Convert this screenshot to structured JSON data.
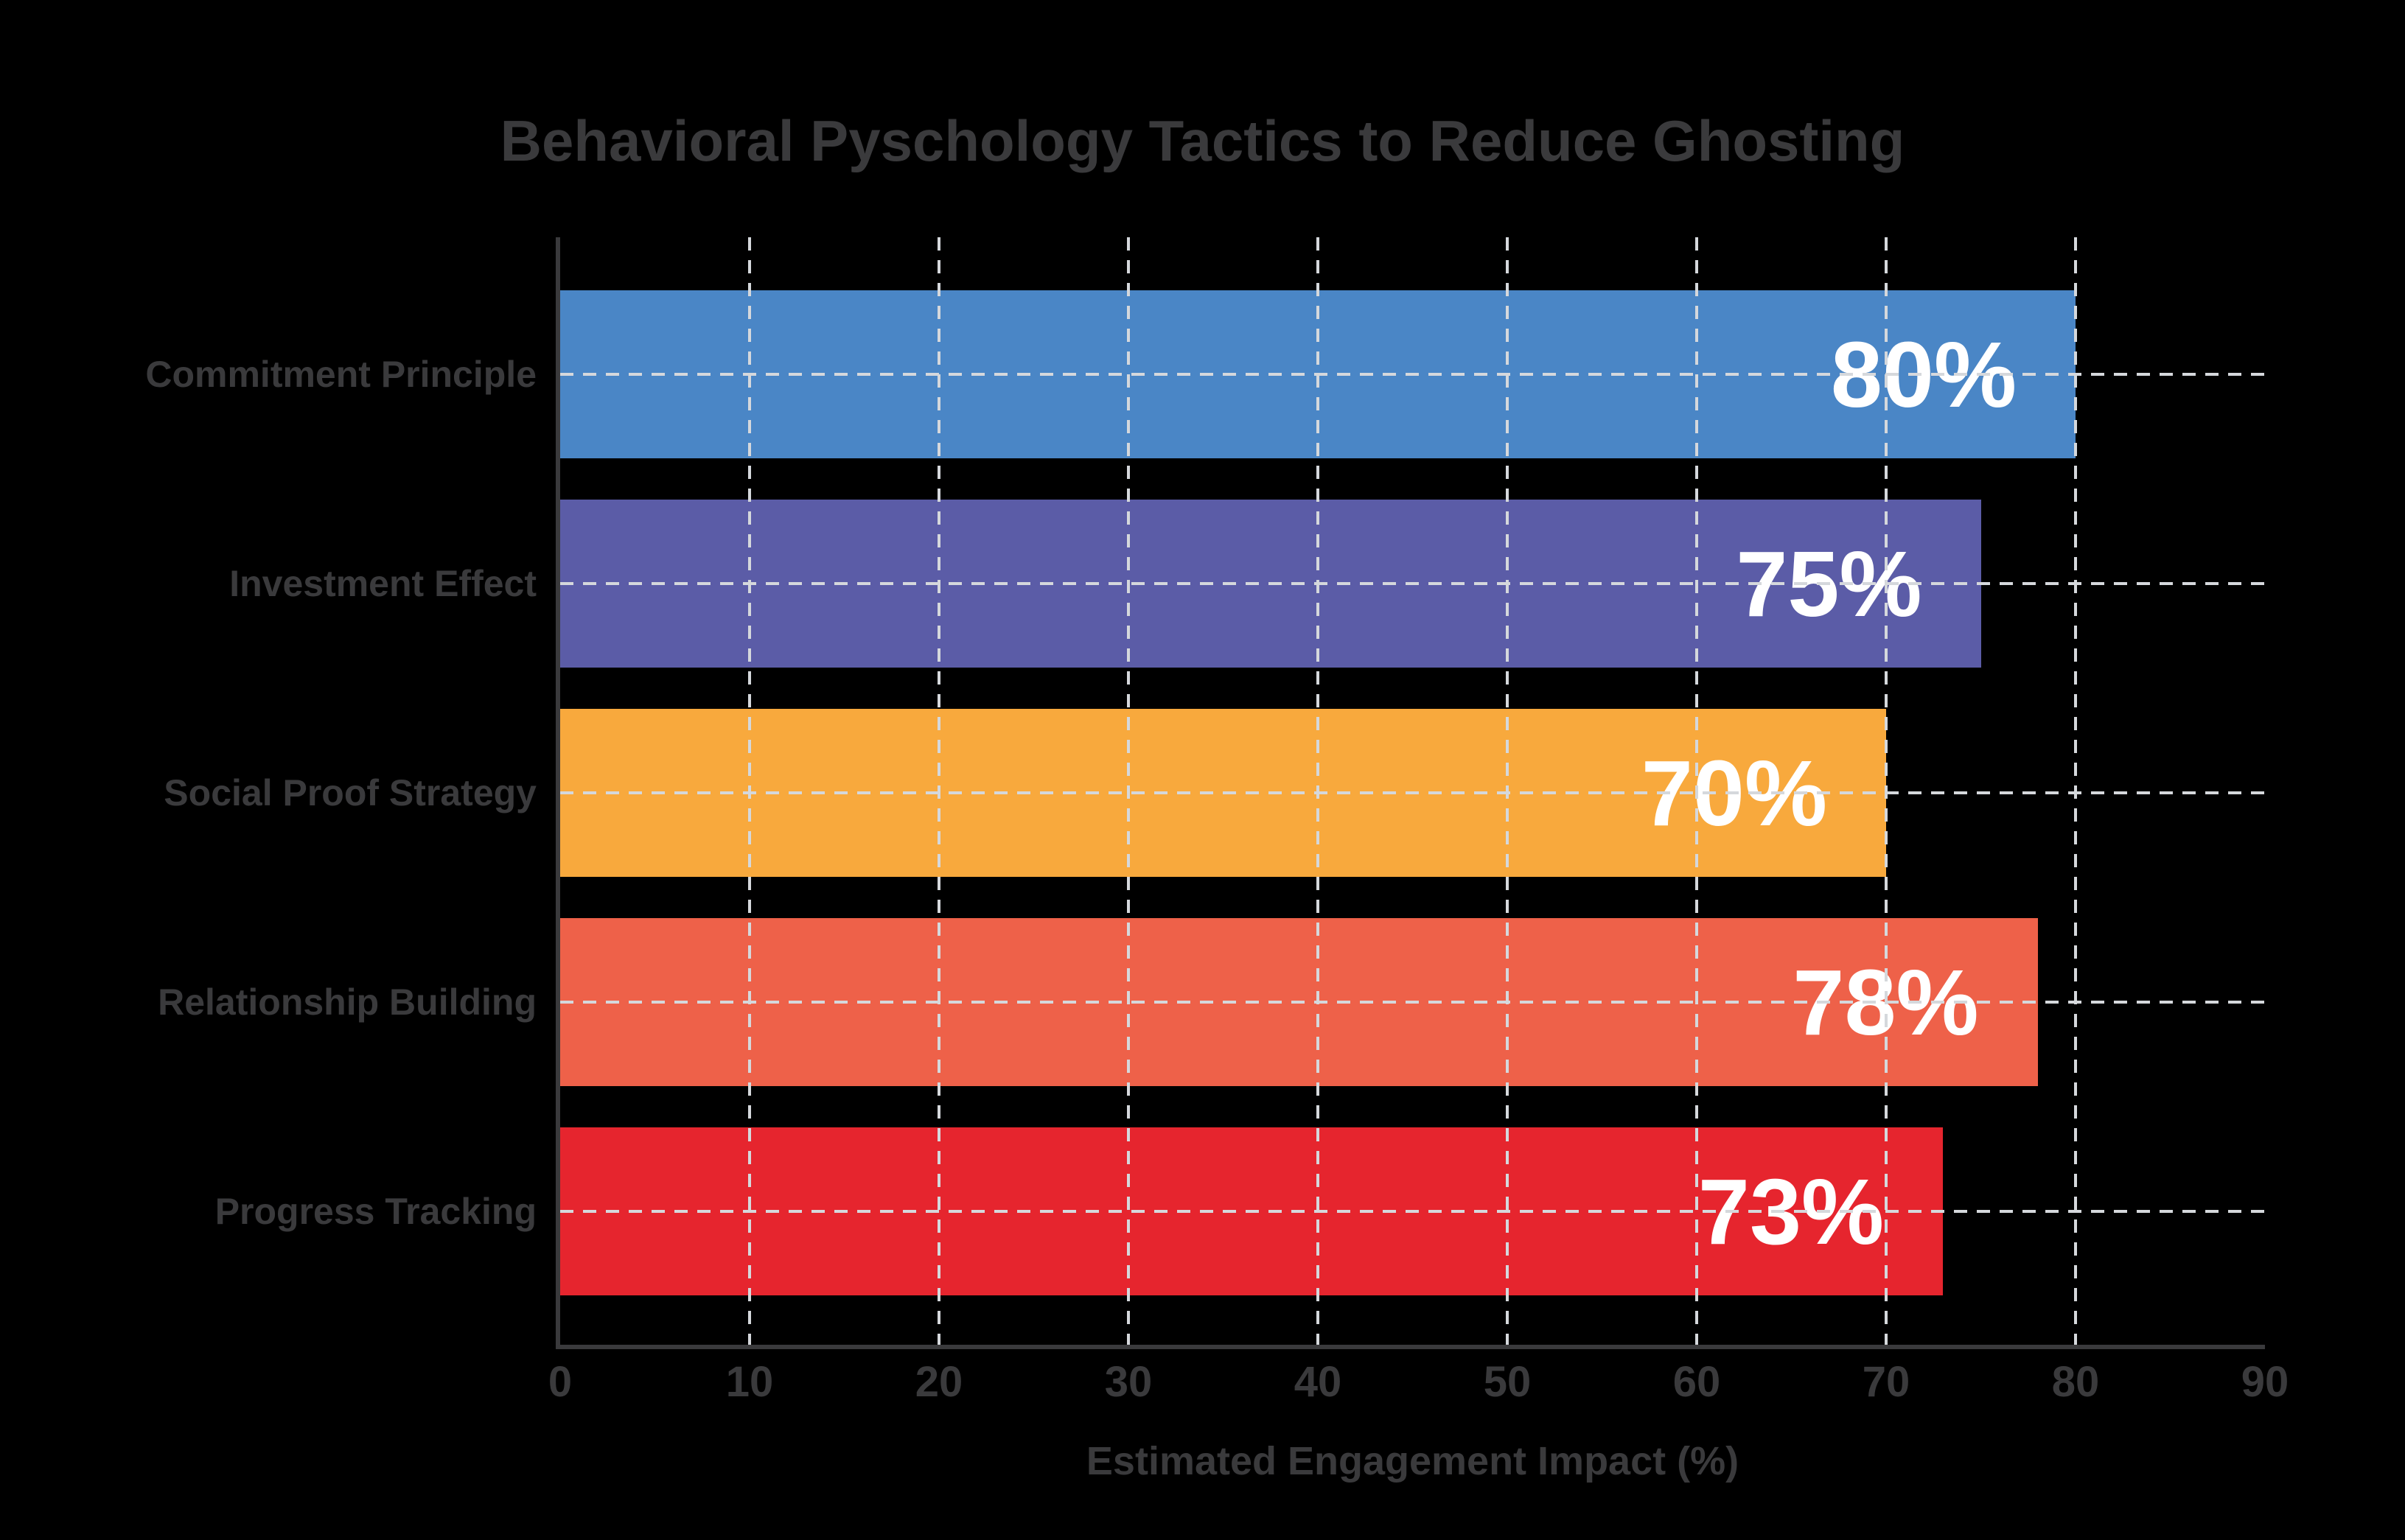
{
  "chart_data": {
    "type": "bar",
    "orientation": "horizontal",
    "title": "Behavioral Pyschology Tactics to Reduce Ghosting",
    "xlabel": "Estimated Engagement Impact (%)",
    "categories": [
      "Commitment Principle",
      "Investment Effect",
      "Social Proof Strategy",
      "Relationship Building",
      "Progress Tracking"
    ],
    "values": [
      80,
      75,
      70,
      78,
      73
    ],
    "value_labels": [
      "80%",
      "75%",
      "70%",
      "78%",
      "73%"
    ],
    "bar_colors": [
      "#4A86C6",
      "#5B5CA7",
      "#F8A93D",
      "#EE6149",
      "#E6252E"
    ],
    "x_ticks": [
      0,
      10,
      20,
      30,
      40,
      50,
      60,
      70,
      80,
      90
    ],
    "grid_ticks": [
      10,
      20,
      30,
      40,
      50,
      60,
      70,
      80
    ],
    "xlim": [
      0,
      90
    ],
    "grid": "dashed",
    "legend": "none",
    "background_color": "#000000",
    "text_color": "#3A3A3C",
    "grid_color": "#D5D8DC",
    "value_label_color": "#FFFFFF"
  }
}
